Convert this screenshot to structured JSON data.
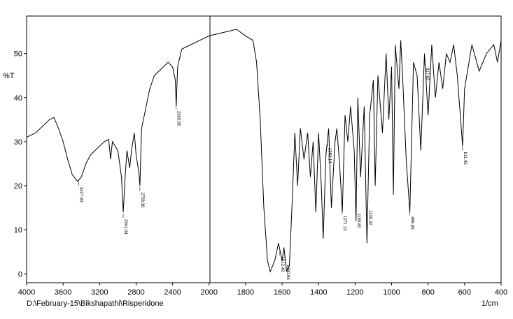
{
  "chart_data": {
    "type": "line",
    "y_label": "%T",
    "x_label": "1/cm",
    "file_label": "D:\\February-15\\Bikshapathi\\Risperidone",
    "xlim": [
      4000,
      400
    ],
    "ylim": [
      -2,
      58.5
    ],
    "xticks": [
      4000,
      3600,
      3200,
      2800,
      2400,
      2000,
      1800,
      1600,
      1400,
      1200,
      1000,
      800,
      600,
      400
    ],
    "yticks": [
      0,
      10,
      20,
      30,
      40,
      50
    ],
    "x": [
      4000,
      3900,
      3800,
      3750,
      3700,
      3650,
      3600,
      3550,
      3500,
      3440,
      3400,
      3350,
      3300,
      3250,
      3200,
      3150,
      3100,
      3080,
      3060,
      3000,
      2960,
      2941,
      2920,
      2900,
      2870,
      2850,
      2820,
      2800,
      2770,
      2758,
      2740,
      2700,
      2650,
      2600,
      2550,
      2500,
      2450,
      2400,
      2370,
      2360,
      2345,
      2300,
      2200,
      2100,
      2000,
      1900,
      1850,
      1800,
      1760,
      1740,
      1720,
      1700,
      1680,
      1665,
      1640,
      1620,
      1600,
      1590,
      1575,
      1560,
      1545,
      1530,
      1515,
      1500,
      1480,
      1460,
      1445,
      1430,
      1415,
      1400,
      1385,
      1375,
      1360,
      1345,
      1330,
      1310,
      1300,
      1285,
      1270,
      1255,
      1240,
      1225,
      1205,
      1195,
      1185,
      1170,
      1150,
      1135,
      1120,
      1100,
      1090,
      1075,
      1050,
      1030,
      1015,
      1000,
      990,
      980,
      960,
      950,
      940,
      920,
      900,
      880,
      860,
      840,
      820,
      800,
      780,
      760,
      740,
      720,
      700,
      680,
      660,
      640,
      611,
      600,
      560,
      520,
      480,
      440,
      420,
      400
    ],
    "series": [
      {
        "name": "Risperidone",
        "color": "#000000",
        "values": [
          31,
          32,
          34,
          35,
          35.5,
          33,
          30,
          26,
          22.5,
          21,
          22,
          25,
          27,
          28,
          29,
          30,
          30.5,
          26,
          30,
          28,
          22,
          14,
          22,
          28,
          24,
          28,
          32,
          27,
          23,
          20,
          33,
          37,
          42,
          45,
          46,
          47,
          48,
          47,
          44,
          38,
          47,
          51,
          52,
          53,
          54,
          55,
          55.5,
          54,
          53,
          48,
          35,
          15,
          3,
          0.5,
          3,
          7,
          3,
          6,
          0.5,
          2,
          16,
          32,
          20,
          33,
          26,
          32,
          22,
          30,
          14,
          32,
          20,
          8,
          27,
          33,
          15,
          30,
          33,
          25,
          14,
          36,
          30,
          38,
          28,
          12,
          40,
          22,
          38,
          7,
          36,
          44,
          20,
          45,
          32,
          50,
          35,
          47,
          18,
          52,
          42,
          53,
          45,
          26,
          14,
          48,
          45,
          28,
          50,
          36,
          52,
          40,
          48,
          42,
          50,
          48,
          52,
          45,
          29,
          42,
          52,
          46,
          50,
          52,
          48,
          53
        ]
      }
    ],
    "annotations": [
      "3427.83",
      "2941.04",
      "2758.30",
      "2360.95",
      "1612.49",
      "1580.65",
      "1352.14",
      "1271.13",
      "1193.80",
      "1130.32",
      "899.65",
      "817.65",
      "611.45"
    ]
  }
}
